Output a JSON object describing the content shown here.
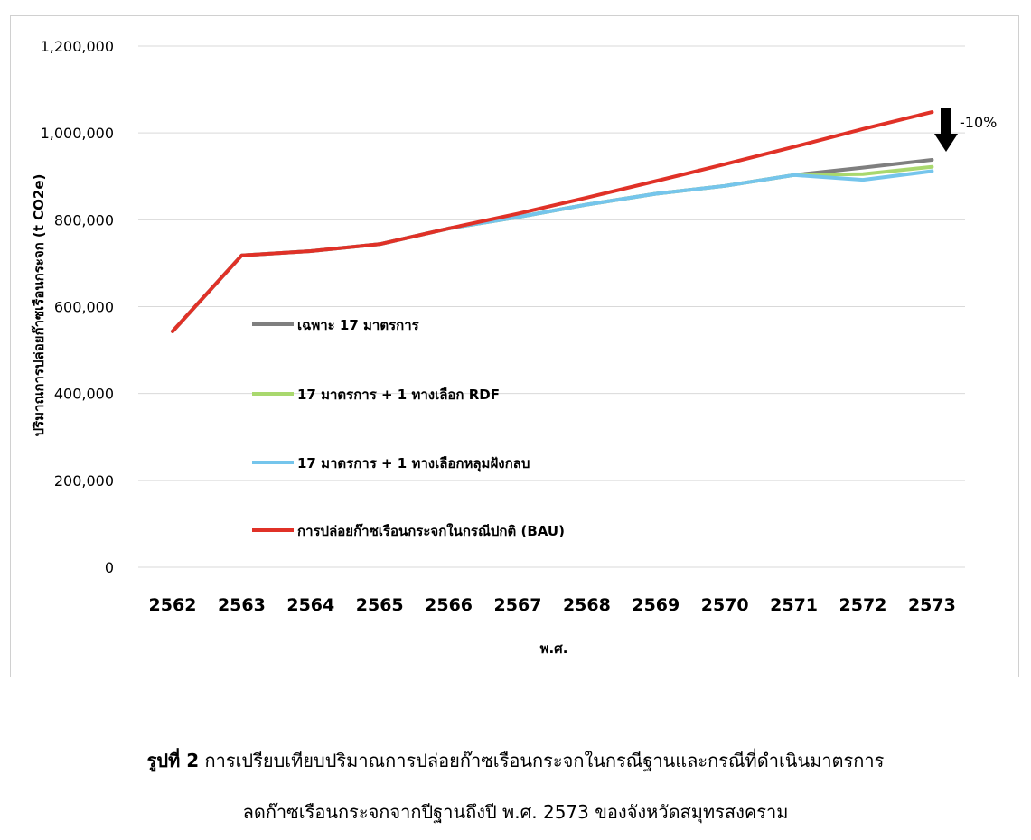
{
  "chart_data": {
    "type": "line",
    "categories": [
      "2562",
      "2563",
      "2564",
      "2565",
      "2566",
      "2567",
      "2568",
      "2569",
      "2570",
      "2571",
      "2572",
      "2573"
    ],
    "ylim": [
      0,
      1200000
    ],
    "yticks": [
      0,
      200000,
      400000,
      600000,
      800000,
      1000000,
      1200000
    ],
    "ytick_labels": [
      "0",
      "200,000",
      "400,000",
      "600,000",
      "800,000",
      "1,000,000",
      "1,200,000"
    ],
    "xlabel": "พ.ศ.",
    "ylabel": "ปริมาณการปล่อยก๊าซเรือนกระจก (t CO2e)",
    "grid": true,
    "legend_position": "left-center",
    "series": [
      {
        "name": "เฉพาะ 17 มาตรการ",
        "color": "#7f7f7f",
        "values": [
          543000,
          718000,
          728000,
          744000,
          780000,
          806000,
          835000,
          860000,
          878000,
          903000,
          920000,
          938000
        ]
      },
      {
        "name": "17 มาตรการ + 1 ทางเลือก RDF",
        "color": "#a9d86e",
        "values": [
          543000,
          718000,
          728000,
          744000,
          780000,
          806000,
          835000,
          860000,
          878000,
          903000,
          905000,
          922000
        ]
      },
      {
        "name": "17 มาตรการ + 1 ทางเลือกหลุมฝังกลบ",
        "color": "#75c5ec",
        "values": [
          543000,
          718000,
          728000,
          744000,
          780000,
          806000,
          835000,
          860000,
          878000,
          903000,
          892000,
          912000
        ]
      },
      {
        "name": "การปล่อยก๊าซเรือนกระจกในกรณีปกติ (BAU)",
        "color": "#e03127",
        "values": [
          543000,
          718000,
          728000,
          744000,
          780000,
          814000,
          851000,
          889000,
          928000,
          968000,
          1009000,
          1048000
        ]
      }
    ],
    "annotation": {
      "text": "-10%",
      "target": "2573"
    }
  },
  "caption": {
    "label": "รูปที่ 2",
    "line1": "การเปรียบเทียบปริมาณการปล่อยก๊าซเรือนกระจกในกรณีฐานและกรณีที่ดำเนินมาตรการ",
    "line2": "ลดก๊าซเรือนกระจกจากปีฐานถึงปี พ.ศ. 2573 ของจังหวัดสมุทรสงคราม"
  }
}
